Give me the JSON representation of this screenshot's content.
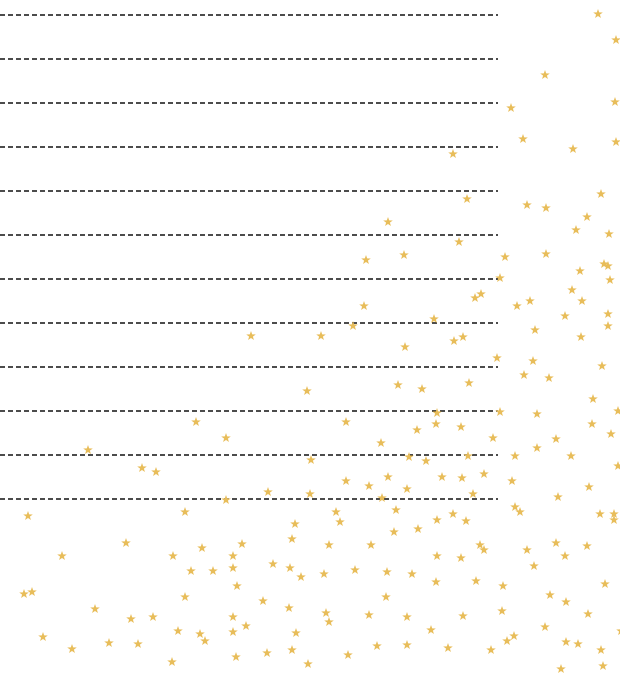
{
  "lines": {
    "count": 12,
    "style": "dashed",
    "color": "#111111"
  },
  "stars": {
    "icon": "star-icon",
    "color": "#e8bd5a"
  }
}
